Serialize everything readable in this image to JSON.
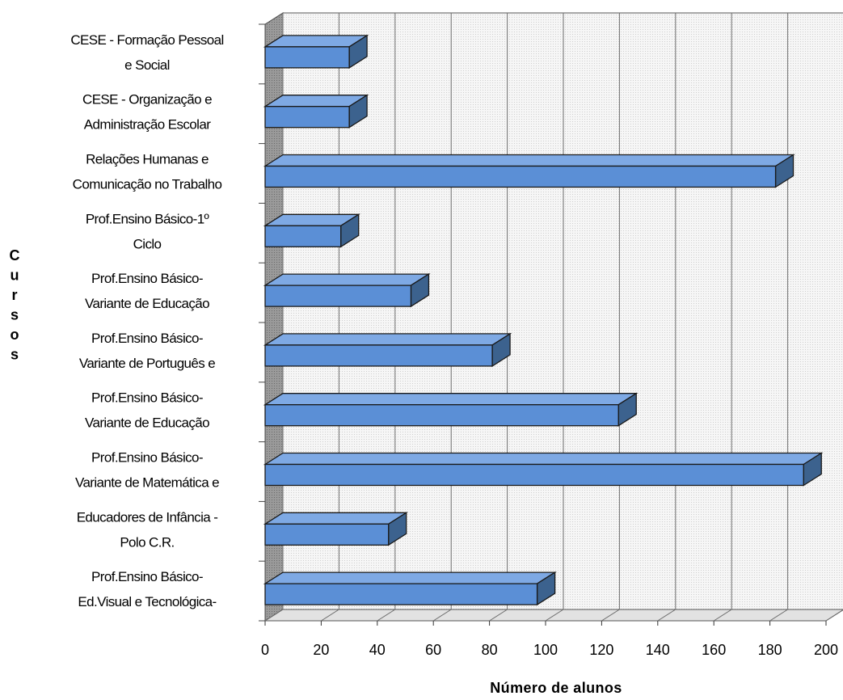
{
  "chart_data": {
    "type": "bar",
    "orientation": "horizontal",
    "three_d": true,
    "categories": [
      [
        "CESE - Formação Pessoal",
        "e Social"
      ],
      [
        "CESE - Organização e",
        "Administração Escolar"
      ],
      [
        "Relações Humanas e",
        "Comunicação no Trabalho"
      ],
      [
        "Prof.Ensino Básico-1º",
        "Ciclo"
      ],
      [
        "Prof.Ensino Básico-",
        "Variante de Educação"
      ],
      [
        "Prof.Ensino Básico-",
        "Variante de Português e"
      ],
      [
        "Prof.Ensino Básico-",
        "Variante de Educação"
      ],
      [
        "Prof.Ensino Básico-",
        "Variante de Matemática e"
      ],
      [
        "Educadores de Infância -",
        "Polo C.R."
      ],
      [
        "Prof.Ensino Básico-",
        "Ed.Visual e Tecnológica-"
      ]
    ],
    "values": [
      30,
      30,
      182,
      27,
      52,
      81,
      126,
      192,
      44,
      97
    ],
    "xlabel": "Número de alunos",
    "ylabel": "Cursos",
    "xlim": [
      0,
      200
    ],
    "xticks": [
      0,
      20,
      40,
      60,
      80,
      100,
      120,
      140,
      160,
      180,
      200
    ],
    "grid": true,
    "legend": "none",
    "colors": {
      "bar_front": "#5b8fd6",
      "bar_top": "#7ea9e4",
      "bar_side": "#3c628e",
      "bar_edge": "#1a1a1a",
      "wall": "#efefef",
      "grid": "#6e6e6e"
    }
  }
}
